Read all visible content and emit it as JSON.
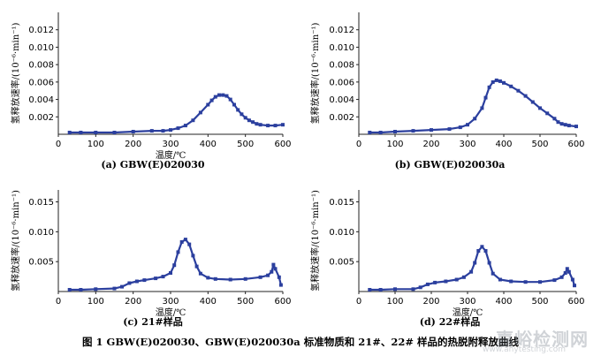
{
  "figure": {
    "caption": "图 1   GBW(E)020030、GBW(E)020030a 标准物质和 21#、22# 样品的热脱附释放曲线",
    "watermark": "嘉峪检测网",
    "watermark_sub": "www.anytesting.com",
    "series_color": "#2b3f9e"
  },
  "chart_data": [
    {
      "id": "a",
      "type": "line",
      "caption": "(a) GBW(E)020030",
      "xlabel": "温度/℃",
      "ylabel": "氢释放速率/(10⁻⁶·min⁻¹)",
      "xlim": [
        0,
        600
      ],
      "ylim": [
        0,
        0.014
      ],
      "xticks": [
        "0",
        "100",
        "200",
        "300",
        "400",
        "500",
        "600"
      ],
      "yticks": [
        "0.002",
        "0.004",
        "0.006",
        "0.008",
        "0.010",
        "0.012"
      ],
      "ytick_values": [
        0.002,
        0.004,
        0.006,
        0.008,
        0.01,
        0.012
      ],
      "x": [
        30,
        60,
        100,
        150,
        200,
        250,
        280,
        300,
        320,
        340,
        360,
        380,
        400,
        410,
        420,
        430,
        440,
        450,
        460,
        470,
        480,
        490,
        500,
        510,
        520,
        530,
        540,
        560,
        580,
        600
      ],
      "y": [
        0.0002,
        0.0002,
        0.0002,
        0.0002,
        0.0003,
        0.0004,
        0.0004,
        0.0005,
        0.0007,
        0.001,
        0.0016,
        0.0025,
        0.0034,
        0.0039,
        0.0043,
        0.0045,
        0.0045,
        0.0044,
        0.004,
        0.0034,
        0.0028,
        0.0023,
        0.0019,
        0.0016,
        0.0014,
        0.0012,
        0.0011,
        0.001,
        0.001,
        0.0011
      ]
    },
    {
      "id": "b",
      "type": "line",
      "caption": "(b) GBW(E)020030a",
      "xlabel": "",
      "ylabel": "氢释放速率/(10⁻⁶·min⁻¹)",
      "xlim": [
        0,
        600
      ],
      "ylim": [
        0,
        0.014
      ],
      "xticks": [
        "0",
        "100",
        "200",
        "300",
        "400",
        "500",
        "600"
      ],
      "yticks": [
        "0.002",
        "0.004",
        "0.006",
        "0.008",
        "0.010",
        "0.012"
      ],
      "ytick_values": [
        0.002,
        0.004,
        0.006,
        0.008,
        0.01,
        0.012
      ],
      "x": [
        30,
        60,
        100,
        150,
        200,
        250,
        280,
        300,
        320,
        340,
        350,
        360,
        370,
        380,
        390,
        400,
        420,
        440,
        460,
        480,
        500,
        520,
        540,
        550,
        560,
        570,
        580,
        600
      ],
      "y": [
        0.0002,
        0.0002,
        0.0003,
        0.0004,
        0.0005,
        0.0006,
        0.0008,
        0.0011,
        0.0018,
        0.003,
        0.0042,
        0.0054,
        0.006,
        0.0062,
        0.0061,
        0.0059,
        0.0055,
        0.005,
        0.0044,
        0.0037,
        0.003,
        0.0024,
        0.0018,
        0.0014,
        0.0012,
        0.0011,
        0.001,
        0.0009
      ]
    },
    {
      "id": "c",
      "type": "line",
      "caption": "(c) 21#样品",
      "xlabel": "温度/℃",
      "ylabel": "氢释放速率/(10⁻⁶·min⁻¹)",
      "xlim": [
        0,
        600
      ],
      "ylim": [
        0,
        0.017
      ],
      "xticks": [
        "0",
        "100",
        "200",
        "300",
        "400",
        "500",
        "600"
      ],
      "yticks": [
        "0.005",
        "0.010",
        "0.015"
      ],
      "ytick_values": [
        0.005,
        0.01,
        0.015
      ],
      "x": [
        30,
        60,
        100,
        150,
        170,
        190,
        210,
        230,
        260,
        280,
        300,
        310,
        320,
        330,
        340,
        350,
        360,
        370,
        380,
        400,
        420,
        460,
        500,
        540,
        560,
        570,
        575,
        580,
        590,
        595
      ],
      "y": [
        0.0003,
        0.0003,
        0.0004,
        0.0005,
        0.0008,
        0.0014,
        0.0017,
        0.0019,
        0.0022,
        0.0025,
        0.0031,
        0.0044,
        0.0066,
        0.0083,
        0.0087,
        0.0079,
        0.006,
        0.0042,
        0.003,
        0.0023,
        0.0021,
        0.002,
        0.0021,
        0.0024,
        0.0027,
        0.0033,
        0.0045,
        0.0038,
        0.0024,
        0.0011
      ]
    },
    {
      "id": "d",
      "type": "line",
      "caption": "(d) 22#样品",
      "xlabel": "温度/℃",
      "ylabel": "氢释放速率/(10⁻⁶·min⁻¹)",
      "xlim": [
        0,
        600
      ],
      "ylim": [
        0,
        0.017
      ],
      "xticks": [
        "0",
        "100",
        "200",
        "300",
        "400",
        "500",
        "600"
      ],
      "yticks": [
        "0.005",
        "0.010",
        "0.015"
      ],
      "ytick_values": [
        0.005,
        0.01,
        0.015
      ],
      "x": [
        30,
        60,
        100,
        150,
        170,
        190,
        210,
        240,
        270,
        290,
        310,
        320,
        330,
        340,
        350,
        360,
        370,
        390,
        420,
        460,
        500,
        540,
        560,
        570,
        575,
        580,
        590,
        595
      ],
      "y": [
        0.0003,
        0.0003,
        0.0004,
        0.0004,
        0.0007,
        0.0012,
        0.0015,
        0.0017,
        0.002,
        0.0024,
        0.0033,
        0.0048,
        0.0068,
        0.0075,
        0.0068,
        0.0048,
        0.003,
        0.002,
        0.0017,
        0.0016,
        0.0016,
        0.0019,
        0.0024,
        0.0031,
        0.0038,
        0.0033,
        0.002,
        0.001
      ]
    }
  ]
}
